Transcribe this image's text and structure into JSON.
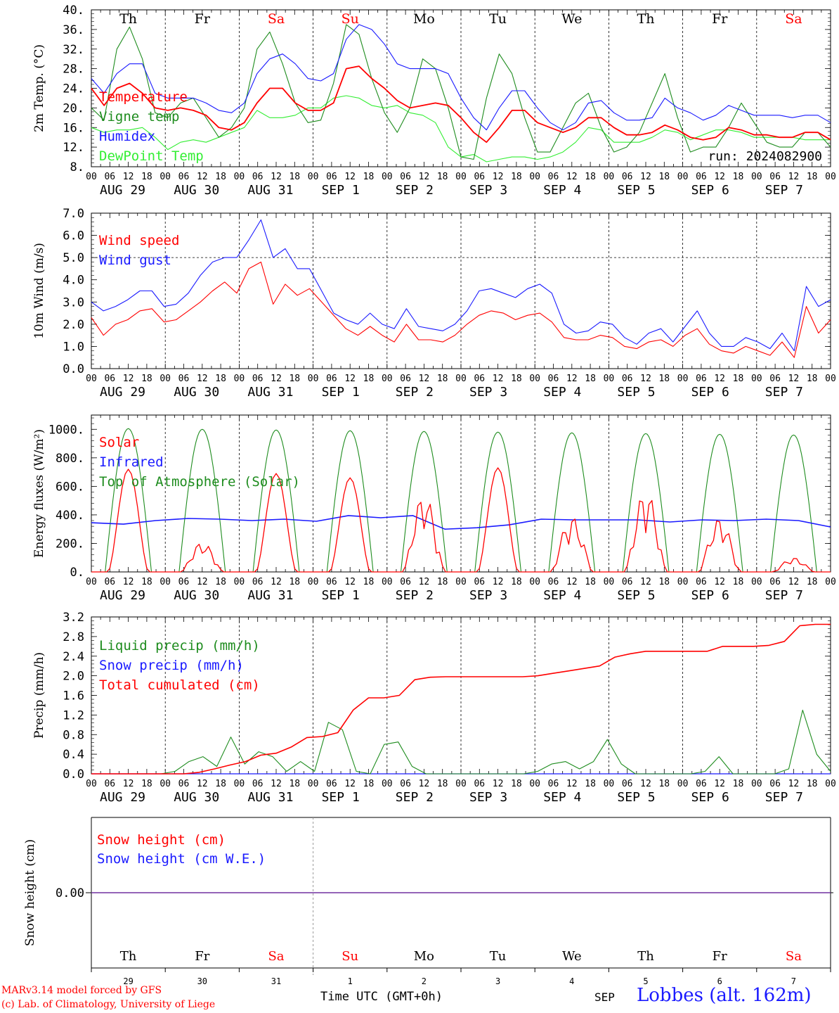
{
  "footer": {
    "model_note": "MARv3.14 model forced by GFS",
    "copyright": "(c) Lab. of Climatology, University of Liege",
    "time_label": "Time UTC (GMT+0h)",
    "month_label": "SEP",
    "station": "Lobbes (alt. 162m)"
  },
  "run_label": "run: 2024082900",
  "hour_ticks": [
    "00",
    "06",
    "12",
    "18"
  ],
  "dates": [
    "AUG 29",
    "AUG 30",
    "AUG 31",
    "SEP  1",
    "SEP  2",
    "SEP  3",
    "SEP  4",
    "SEP  5",
    "SEP  6",
    "SEP  7"
  ],
  "day_numbers": [
    "29",
    "30",
    "31",
    "1",
    "2",
    "3",
    "4",
    "5",
    "6",
    "7"
  ],
  "weekdays": [
    {
      "label": "Th",
      "weekend": false
    },
    {
      "label": "Fr",
      "weekend": false
    },
    {
      "label": "Sa",
      "weekend": true
    },
    {
      "label": "Su",
      "weekend": true
    },
    {
      "label": "Mo",
      "weekend": false
    },
    {
      "label": "Tu",
      "weekend": false
    },
    {
      "label": "We",
      "weekend": false
    },
    {
      "label": "Th",
      "weekend": false
    },
    {
      "label": "Fr",
      "weekend": false
    },
    {
      "label": "Sa",
      "weekend": true
    }
  ],
  "colors": {
    "red": "#ff0000",
    "green": "#1e8c1e",
    "blue": "#1a1aff",
    "lightgreen": "#33ee33",
    "purple": "#7030a0",
    "weekend": "#ff0000"
  },
  "chart_data": [
    {
      "type": "line",
      "ylabel": "2m Temp. (°C)",
      "ylim": [
        8,
        40
      ],
      "yticks": [
        "8.",
        "12.",
        "16.",
        "20.",
        "24.",
        "28.",
        "32.",
        "36.",
        "40."
      ],
      "x": "hours from 2024-08-29 00 UTC (every 6h, 0-240)",
      "series": [
        {
          "name": "Temperature",
          "color": "red",
          "values": [
            24,
            20.5,
            24,
            25,
            23,
            20,
            19.5,
            20,
            19.5,
            18.5,
            16,
            15.5,
            17,
            21,
            24,
            24,
            21,
            19.5,
            19.5,
            21,
            28,
            28.5,
            26,
            24,
            21.5,
            20,
            20.5,
            21,
            20.5,
            18,
            15,
            13,
            16,
            19.5,
            19.5,
            17,
            16,
            15,
            16,
            18,
            18,
            16,
            14.5,
            14.5,
            15,
            16.5,
            15.5,
            14,
            13.5,
            14,
            16,
            15.5,
            14.5,
            14.5,
            14,
            14,
            15,
            15,
            13.5
          ]
        },
        {
          "name": "Vigne temp",
          "color": "green",
          "values": [
            20,
            17.5,
            32,
            36.5,
            30,
            19,
            18,
            21,
            22,
            18,
            14,
            16,
            20,
            32,
            35.5,
            29,
            21,
            17,
            17.5,
            25,
            37,
            35,
            26,
            19,
            15,
            20,
            30,
            28,
            20,
            10,
            9.5,
            22,
            31,
            27,
            18,
            11,
            11,
            16,
            21,
            23,
            16,
            11,
            12,
            15,
            21,
            27,
            18,
            11,
            12,
            12,
            16,
            21,
            17,
            13,
            12,
            12,
            15,
            15,
            12
          ]
        },
        {
          "name": "Humidex",
          "color": "blue",
          "values": [
            26,
            23,
            27,
            29,
            29,
            23,
            22,
            22,
            22,
            21,
            19.5,
            19,
            21,
            27,
            30,
            31,
            29,
            26,
            25.5,
            27,
            34,
            37,
            36,
            33,
            29,
            28,
            28,
            28,
            27,
            22,
            18,
            15.5,
            20,
            23.5,
            23.5,
            20,
            17,
            15.5,
            17,
            21,
            21.5,
            19,
            17.5,
            17.5,
            18,
            22,
            20,
            19,
            17.5,
            18.5,
            20.5,
            19.5,
            18.5,
            18.5,
            18.5,
            18,
            18.5,
            18.5,
            17
          ]
        },
        {
          "name": "DewPoint Temp",
          "color": "lightgreen",
          "values": [
            16,
            15,
            15.5,
            15.5,
            16,
            14,
            11.5,
            13,
            13.5,
            13,
            14,
            15,
            16,
            19.5,
            18,
            18,
            18.5,
            20,
            20,
            22,
            22.5,
            22,
            20.5,
            20,
            20.5,
            19,
            18.5,
            17,
            12,
            10,
            10.5,
            9,
            9.5,
            10,
            10,
            9.5,
            10,
            11,
            13,
            16,
            15.5,
            13,
            13,
            13,
            14,
            15.5,
            15,
            13.5,
            14.5,
            15.5,
            15.5,
            15,
            14,
            14,
            14,
            14,
            13.5,
            13.5,
            13.5
          ]
        }
      ]
    },
    {
      "type": "line",
      "ylabel": "10m Wind (m/s)",
      "ylim": [
        0,
        7
      ],
      "yticks": [
        "0.0",
        "1.0",
        "2.0",
        "3.0",
        "4.0",
        "5.0",
        "6.0",
        "7.0"
      ],
      "reference_line": 5.0,
      "series": [
        {
          "name": "Wind speed",
          "color": "red",
          "values": [
            2.3,
            1.5,
            2.0,
            2.2,
            2.6,
            2.7,
            2.1,
            2.2,
            2.6,
            3.0,
            3.5,
            3.9,
            3.4,
            4.5,
            4.8,
            2.9,
            3.8,
            3.3,
            3.6,
            3.0,
            2.4,
            1.8,
            1.5,
            1.9,
            1.5,
            1.2,
            2.0,
            1.3,
            1.3,
            1.2,
            1.5,
            2.0,
            2.4,
            2.6,
            2.5,
            2.2,
            2.4,
            2.5,
            2.1,
            1.4,
            1.3,
            1.3,
            1.5,
            1.4,
            1.0,
            0.9,
            1.2,
            1.3,
            1.0,
            1.5,
            1.8,
            1.1,
            0.8,
            0.7,
            1.0,
            0.8,
            0.6,
            1.2,
            0.5,
            2.8,
            1.6,
            2.2
          ]
        },
        {
          "name": "Wind gust",
          "color": "blue",
          "values": [
            3.0,
            2.6,
            2.8,
            3.1,
            3.5,
            3.5,
            2.8,
            2.9,
            3.4,
            4.2,
            4.8,
            5.0,
            5.0,
            5.8,
            6.7,
            5.0,
            5.4,
            4.5,
            4.5,
            3.5,
            2.5,
            2.2,
            2.0,
            2.5,
            2.0,
            1.8,
            2.7,
            1.9,
            1.8,
            1.7,
            2.0,
            2.6,
            3.5,
            3.6,
            3.4,
            3.2,
            3.6,
            3.8,
            3.4,
            2.0,
            1.6,
            1.7,
            2.1,
            2.0,
            1.4,
            1.1,
            1.6,
            1.8,
            1.2,
            1.9,
            2.6,
            1.6,
            1.0,
            1.0,
            1.4,
            1.2,
            0.9,
            1.6,
            0.8,
            3.7,
            2.8,
            3.1
          ]
        }
      ]
    },
    {
      "type": "line",
      "ylabel": "Energy fluxes (W/m²)",
      "ylim": [
        0,
        1100
      ],
      "yticks": [
        "0.",
        "200.",
        "400.",
        "600.",
        "800.",
        "1000."
      ],
      "series": [
        {
          "name": "Solar",
          "color": "red",
          "day_peaks": [
            720,
            210,
            690,
            660,
            550,
            730,
            390,
            580,
            380,
            100
          ]
        },
        {
          "name": "Infrared",
          "color": "blue",
          "values": [
            345,
            335,
            360,
            375,
            370,
            360,
            370,
            355,
            395,
            380,
            395,
            300,
            310,
            330,
            370,
            365,
            365,
            365,
            350,
            365,
            360,
            370,
            360,
            315
          ]
        },
        {
          "name": "Top of Atmosphere (Solar)",
          "color": "green",
          "day_peaks": [
            1005,
            1000,
            995,
            990,
            985,
            980,
            975,
            970,
            965,
            960
          ]
        }
      ]
    },
    {
      "type": "line",
      "ylabel": "Precip (mm/h)",
      "ylim": [
        0,
        3.2
      ],
      "yticks": [
        "0.0",
        "0.4",
        "0.8",
        "1.2",
        "1.6",
        "2.0",
        "2.4",
        "2.8",
        "3.2"
      ],
      "series": [
        {
          "name": "Liquid precip (mm/h)",
          "color": "green",
          "values": [
            0,
            0,
            0,
            0,
            0,
            0,
            0.05,
            0.25,
            0.35,
            0.15,
            0.75,
            0.2,
            0.45,
            0.35,
            0.05,
            0.25,
            0.05,
            1.05,
            0.9,
            0.05,
            0,
            0.6,
            0.65,
            0.15,
            0,
            0,
            0,
            0,
            0,
            0,
            0,
            0,
            0.05,
            0.2,
            0.25,
            0.1,
            0.25,
            0.7,
            0.2,
            0,
            0,
            0,
            0,
            0,
            0.05,
            0.35,
            0,
            0,
            0,
            0,
            0.1,
            1.3,
            0.4,
            0.05
          ]
        },
        {
          "name": "Snow precip (mm/h)",
          "color": "blue",
          "values": [
            0,
            0,
            0,
            0,
            0,
            0,
            0,
            0,
            0,
            0,
            0,
            0,
            0,
            0,
            0,
            0,
            0,
            0,
            0,
            0,
            0,
            0,
            0,
            0,
            0,
            0,
            0,
            0,
            0,
            0,
            0,
            0,
            0,
            0,
            0,
            0,
            0,
            0,
            0,
            0,
            0,
            0,
            0,
            0,
            0,
            0,
            0,
            0,
            0,
            0,
            0,
            0,
            0,
            0
          ]
        },
        {
          "name": "Total cumulated (cm)",
          "color": "red",
          "values": [
            0,
            0,
            0,
            0,
            0,
            0,
            0,
            0.03,
            0.1,
            0.18,
            0.25,
            0.38,
            0.42,
            0.55,
            0.74,
            0.76,
            0.84,
            1.3,
            1.55,
            1.55,
            1.6,
            1.92,
            1.97,
            1.98,
            1.98,
            1.98,
            1.98,
            1.98,
            1.98,
            2.0,
            2.05,
            2.1,
            2.15,
            2.2,
            2.38,
            2.45,
            2.5,
            2.5,
            2.5,
            2.5,
            2.5,
            2.6,
            2.6,
            2.6,
            2.62,
            2.7,
            3.02,
            3.05,
            3.05
          ]
        }
      ]
    },
    {
      "type": "line",
      "ylabel": "Snow height (cm)",
      "yticks": [
        "0.00"
      ],
      "series": [
        {
          "name": "Snow height (cm)",
          "color": "red",
          "values": [
            0,
            0
          ]
        },
        {
          "name": "Snow height (cm W.E.)",
          "color": "blue",
          "values": [
            0,
            0
          ]
        }
      ]
    }
  ]
}
